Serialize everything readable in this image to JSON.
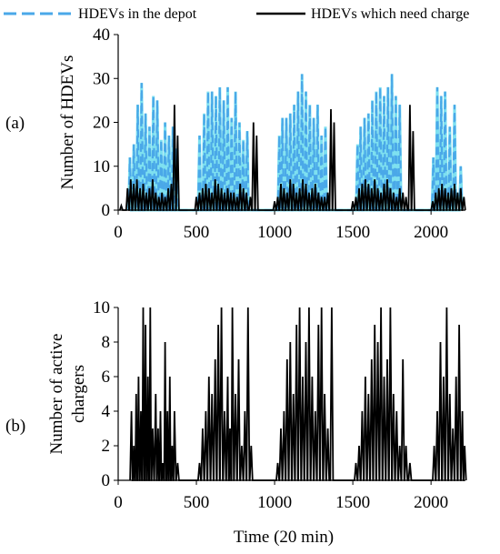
{
  "legend": {
    "series_a": "HDEVs in the depot",
    "series_b": "HDEVs which need charge"
  },
  "panel_labels": [
    "(a)",
    "(b)"
  ],
  "xlabel": "Time (20 min)",
  "colors": {
    "depot_line": "#4aa8e8",
    "depot_fill": "#7ee0f0",
    "need_line": "#000000",
    "chargers_line": "#000000"
  },
  "chart_data": [
    {
      "type": "line",
      "panel": "(a)",
      "ylabel": "Number of  HDEVs",
      "xlim": [
        0,
        2220
      ],
      "ylim": [
        0,
        40
      ],
      "xticks": [
        0,
        500,
        1000,
        1500,
        2000
      ],
      "yticks": [
        0,
        10,
        20,
        30,
        40
      ],
      "grid": false,
      "legend_position": "top",
      "series": [
        {
          "name": "HDEVs in the depot",
          "style": "dashed",
          "peaks": [
            [
              75,
              12
            ],
            [
              100,
              15
            ],
            [
              125,
              24
            ],
            [
              150,
              29
            ],
            [
              175,
              22
            ],
            [
              200,
              19
            ],
            [
              225,
              26
            ],
            [
              250,
              25
            ],
            [
              275,
              16
            ],
            [
              300,
              20
            ],
            [
              325,
              17
            ],
            [
              350,
              19
            ],
            [
              375,
              14
            ],
            [
              520,
              17
            ],
            [
              550,
              22
            ],
            [
              575,
              27
            ],
            [
              600,
              27
            ],
            [
              625,
              26
            ],
            [
              650,
              28
            ],
            [
              675,
              25
            ],
            [
              700,
              28
            ],
            [
              725,
              21
            ],
            [
              750,
              27
            ],
            [
              775,
              20
            ],
            [
              800,
              16
            ],
            [
              825,
              18
            ],
            [
              1030,
              17
            ],
            [
              1050,
              21
            ],
            [
              1075,
              21
            ],
            [
              1100,
              22
            ],
            [
              1125,
              24
            ],
            [
              1150,
              27
            ],
            [
              1175,
              31
            ],
            [
              1200,
              27
            ],
            [
              1225,
              24
            ],
            [
              1250,
              21
            ],
            [
              1275,
              24
            ],
            [
              1300,
              17
            ],
            [
              1325,
              19
            ],
            [
              1530,
              15
            ],
            [
              1550,
              19
            ],
            [
              1575,
              21
            ],
            [
              1600,
              22
            ],
            [
              1625,
              25
            ],
            [
              1650,
              27
            ],
            [
              1675,
              28
            ],
            [
              1700,
              26
            ],
            [
              1725,
              28
            ],
            [
              1750,
              31
            ],
            [
              1775,
              26
            ],
            [
              1800,
              24
            ],
            [
              2015,
              12
            ],
            [
              2040,
              28
            ],
            [
              2065,
              26
            ],
            [
              2090,
              27
            ],
            [
              2120,
              19
            ],
            [
              2150,
              24
            ],
            [
              2190,
              10
            ]
          ]
        },
        {
          "name": "HDEVs which need charge",
          "style": "solid",
          "peaks": [
            [
              20,
              1
            ],
            [
              60,
              5
            ],
            [
              80,
              7
            ],
            [
              100,
              6
            ],
            [
              120,
              7
            ],
            [
              140,
              5
            ],
            [
              160,
              6
            ],
            [
              180,
              4
            ],
            [
              200,
              5
            ],
            [
              220,
              7
            ],
            [
              240,
              4
            ],
            [
              260,
              3
            ],
            [
              280,
              4
            ],
            [
              300,
              3
            ],
            [
              320,
              5
            ],
            [
              340,
              6
            ],
            [
              360,
              24
            ],
            [
              380,
              17
            ],
            [
              500,
              3
            ],
            [
              520,
              4
            ],
            [
              540,
              5
            ],
            [
              560,
              6
            ],
            [
              580,
              5
            ],
            [
              600,
              4
            ],
            [
              620,
              7
            ],
            [
              640,
              6
            ],
            [
              660,
              5
            ],
            [
              680,
              4
            ],
            [
              700,
              5
            ],
            [
              720,
              4
            ],
            [
              740,
              4
            ],
            [
              760,
              3
            ],
            [
              780,
              6
            ],
            [
              800,
              5
            ],
            [
              820,
              4
            ],
            [
              845,
              3
            ],
            [
              865,
              20
            ],
            [
              885,
              17
            ],
            [
              1000,
              2
            ],
            [
              1020,
              3
            ],
            [
              1040,
              6
            ],
            [
              1060,
              5
            ],
            [
              1080,
              4
            ],
            [
              1100,
              7
            ],
            [
              1120,
              6
            ],
            [
              1140,
              4
            ],
            [
              1160,
              5
            ],
            [
              1180,
              7
            ],
            [
              1200,
              6
            ],
            [
              1220,
              4
            ],
            [
              1240,
              5
            ],
            [
              1260,
              6
            ],
            [
              1280,
              4
            ],
            [
              1300,
              3
            ],
            [
              1320,
              3
            ],
            [
              1340,
              4
            ],
            [
              1360,
              23
            ],
            [
              1380,
              20
            ],
            [
              1500,
              2
            ],
            [
              1520,
              3
            ],
            [
              1540,
              5
            ],
            [
              1560,
              6
            ],
            [
              1580,
              7
            ],
            [
              1600,
              6
            ],
            [
              1620,
              5
            ],
            [
              1640,
              7
            ],
            [
              1660,
              5
            ],
            [
              1680,
              4
            ],
            [
              1700,
              6
            ],
            [
              1720,
              7
            ],
            [
              1740,
              5
            ],
            [
              1760,
              4
            ],
            [
              1780,
              3
            ],
            [
              1800,
              5
            ],
            [
              1820,
              4
            ],
            [
              1840,
              3
            ],
            [
              1865,
              24
            ],
            [
              1885,
              18
            ],
            [
              2010,
              2
            ],
            [
              2030,
              4
            ],
            [
              2050,
              5
            ],
            [
              2070,
              6
            ],
            [
              2090,
              5
            ],
            [
              2110,
              4
            ],
            [
              2130,
              5
            ],
            [
              2150,
              6
            ],
            [
              2170,
              4
            ],
            [
              2190,
              5
            ],
            [
              2210,
              3
            ]
          ]
        }
      ]
    },
    {
      "type": "line",
      "panel": "(b)",
      "ylabel": "Number of  active chargers",
      "xlim": [
        0,
        2220
      ],
      "ylim": [
        0,
        10
      ],
      "xticks": [
        0,
        500,
        1000,
        1500,
        2000
      ],
      "yticks": [
        0,
        2,
        4,
        6,
        8,
        10
      ],
      "grid": false,
      "series": [
        {
          "name": "Number of active chargers",
          "style": "solid",
          "peaks": [
            [
              85,
              4
            ],
            [
              100,
              2
            ],
            [
              115,
              5
            ],
            [
              130,
              6
            ],
            [
              145,
              4
            ],
            [
              160,
              10
            ],
            [
              175,
              9
            ],
            [
              190,
              6
            ],
            [
              205,
              10
            ],
            [
              220,
              3
            ],
            [
              240,
              5
            ],
            [
              255,
              3
            ],
            [
              270,
              4
            ],
            [
              285,
              1
            ],
            [
              300,
              8
            ],
            [
              315,
              4
            ],
            [
              330,
              6
            ],
            [
              345,
              2
            ],
            [
              360,
              4
            ],
            [
              380,
              1
            ],
            [
              520,
              1
            ],
            [
              540,
              3
            ],
            [
              560,
              4
            ],
            [
              580,
              6
            ],
            [
              600,
              5
            ],
            [
              620,
              7
            ],
            [
              640,
              9
            ],
            [
              660,
              10
            ],
            [
              680,
              4
            ],
            [
              700,
              6
            ],
            [
              715,
              3
            ],
            [
              730,
              10
            ],
            [
              750,
              5
            ],
            [
              770,
              7
            ],
            [
              790,
              2
            ],
            [
              810,
              4
            ],
            [
              830,
              10
            ],
            [
              850,
              2
            ],
            [
              1020,
              1
            ],
            [
              1040,
              3
            ],
            [
              1060,
              4
            ],
            [
              1080,
              7
            ],
            [
              1100,
              8
            ],
            [
              1120,
              5
            ],
            [
              1140,
              9
            ],
            [
              1160,
              10
            ],
            [
              1180,
              6
            ],
            [
              1200,
              8
            ],
            [
              1220,
              10
            ],
            [
              1240,
              6
            ],
            [
              1260,
              4
            ],
            [
              1280,
              9
            ],
            [
              1300,
              10
            ],
            [
              1320,
              5
            ],
            [
              1340,
              3
            ],
            [
              1365,
              10
            ],
            [
              1520,
              1
            ],
            [
              1540,
              2
            ],
            [
              1560,
              4
            ],
            [
              1580,
              6
            ],
            [
              1600,
              5
            ],
            [
              1620,
              7
            ],
            [
              1640,
              9
            ],
            [
              1660,
              8
            ],
            [
              1680,
              10
            ],
            [
              1700,
              6
            ],
            [
              1720,
              7
            ],
            [
              1740,
              10
            ],
            [
              1760,
              5
            ],
            [
              1780,
              4
            ],
            [
              1800,
              2
            ],
            [
              1820,
              7
            ],
            [
              1840,
              2
            ],
            [
              1865,
              1
            ],
            [
              2020,
              2
            ],
            [
              2040,
              4
            ],
            [
              2060,
              8
            ],
            [
              2080,
              6
            ],
            [
              2100,
              10
            ],
            [
              2120,
              5
            ],
            [
              2140,
              3
            ],
            [
              2160,
              6
            ],
            [
              2180,
              9
            ],
            [
              2200,
              4
            ],
            [
              2215,
              2
            ]
          ]
        }
      ]
    }
  ]
}
